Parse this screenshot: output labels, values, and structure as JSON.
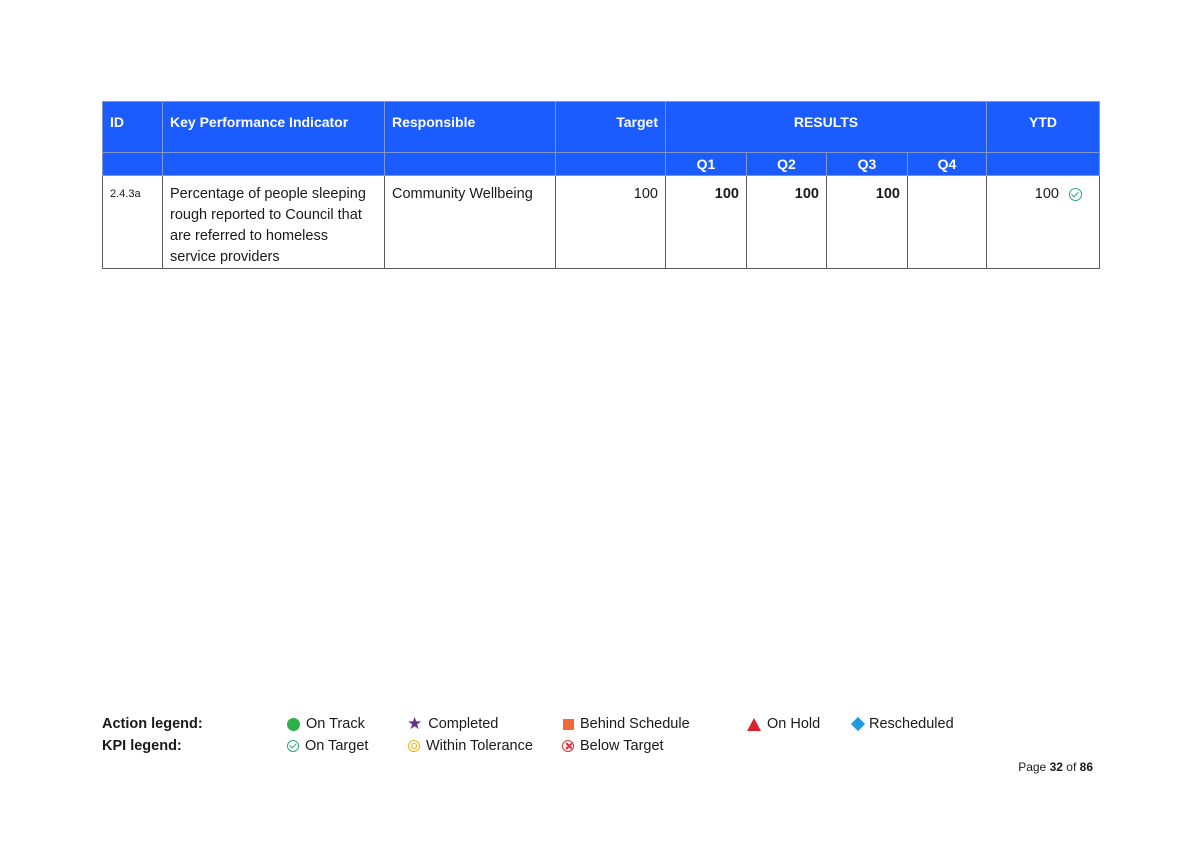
{
  "table": {
    "headers": {
      "id": "ID",
      "kpi": "Key Performance Indicator",
      "responsible": "Responsible",
      "target": "Target",
      "results": "RESULTS",
      "ytd": "YTD",
      "q1": "Q1",
      "q2": "Q2",
      "q3": "Q3",
      "q4": "Q4"
    },
    "rows": [
      {
        "id": "2.4.3a",
        "kpi": "Percentage of people sleeping rough reported to Council that are referred to homeless service providers",
        "responsible": "Community Wellbeing",
        "target": "100",
        "q1": "100",
        "q2": "100",
        "q3": "100",
        "q4": "",
        "ytd": "100",
        "ytd_status_icon": "on-target-icon"
      }
    ]
  },
  "legend": {
    "action_label": "Action legend:",
    "kpi_label": "KPI legend:",
    "action_items": [
      {
        "icon": "green-circle-icon",
        "label": "On Track"
      },
      {
        "icon": "purple-star-icon",
        "label": "Completed"
      },
      {
        "icon": "orange-square-icon",
        "label": "Behind Schedule"
      },
      {
        "icon": "red-triangle-icon",
        "label": "On Hold"
      },
      {
        "icon": "blue-diamond-icon",
        "label": "Rescheduled"
      }
    ],
    "kpi_items": [
      {
        "icon": "green-check-icon",
        "label": "On Target"
      },
      {
        "icon": "yellow-ring-icon",
        "label": "Within Tolerance"
      },
      {
        "icon": "red-x-icon",
        "label": "Below Target"
      }
    ]
  },
  "page": {
    "prefix": "Page",
    "current": "32",
    "of": "of",
    "total": "86"
  },
  "colors": {
    "header_bg": "#1a5cff",
    "on_track": "#2bb34a",
    "completed": "#6b2e8f",
    "behind": "#f26a3c",
    "on_hold": "#d9232e",
    "rescheduled": "#1f9be0",
    "on_target": "#2aa876",
    "tolerance": "#f0b400",
    "below": "#e0312f"
  }
}
